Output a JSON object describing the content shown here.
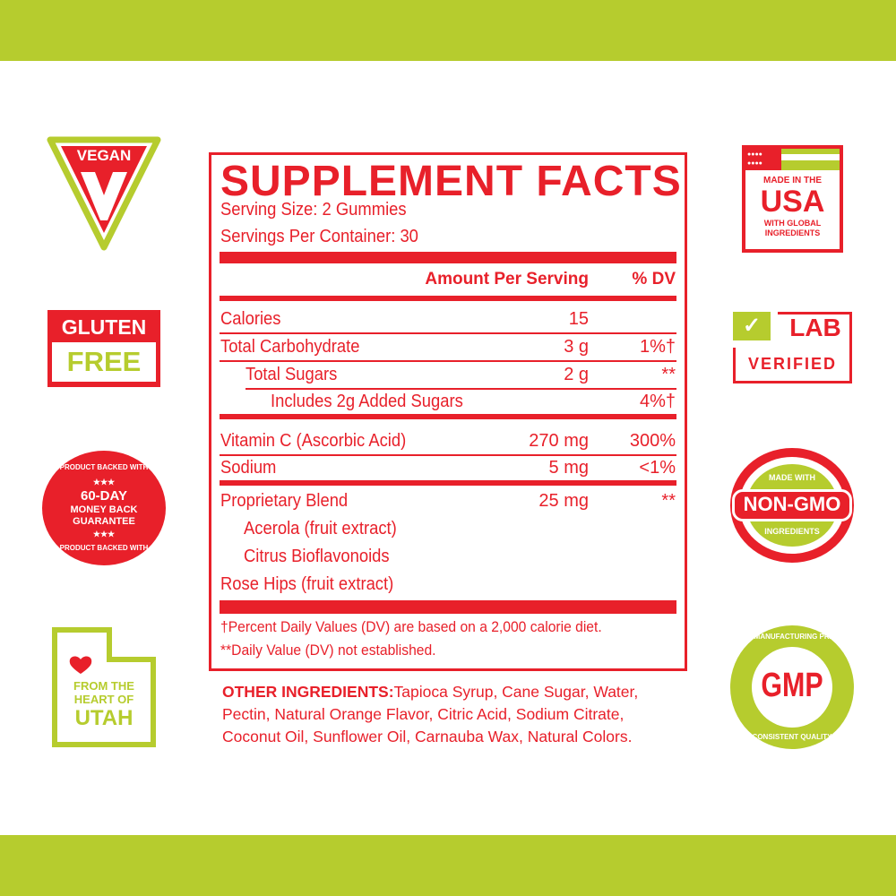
{
  "colors": {
    "red": "#e8202a",
    "green": "#b6cc2e"
  },
  "badges_left": {
    "vegan": "VEGAN",
    "gluten_free": {
      "line1": "GLUTEN",
      "line2": "FREE"
    },
    "guarantee": {
      "ring": "PRODUCT BACKED WITH",
      "line1": "60-DAY",
      "line2": "MONEY BACK",
      "line3": "GUARANTEE",
      "stars": "★★★"
    },
    "utah": {
      "line1": "FROM THE",
      "line2": "HEART OF",
      "line3": "UTAH"
    }
  },
  "badges_right": {
    "usa": {
      "line1": "MADE IN THE",
      "line2": "USA",
      "line3": "WITH GLOBAL",
      "line4": "INGREDIENTS"
    },
    "lab": {
      "line1": "LAB",
      "line2": "VERIFIED"
    },
    "non_gmo": {
      "top": "MADE WITH",
      "main": "NON-GMO",
      "bottom": "INGREDIENTS"
    },
    "gmp": {
      "top": "GOOD MANUFACTURING PRACTICE",
      "main": "GMP",
      "bottom": "CONSISTENT QUALITY"
    }
  },
  "facts": {
    "title": "SUPPLEMENT FACTS",
    "serving_size": "Serving Size: 2 Gummies",
    "servings_per_container": "Servings Per Container: 30",
    "header_amount": "Amount Per Serving",
    "header_dv": "% DV",
    "rows": [
      {
        "name": "Calories",
        "amount": "15",
        "dv": ""
      },
      {
        "name": "Total Carbohydrate",
        "amount": "3 g",
        "dv": "1%†"
      },
      {
        "name": "Total Sugars",
        "amount": "2 g",
        "dv": "**"
      },
      {
        "name": "Includes 2g Added Sugars",
        "amount": "",
        "dv": "4%†"
      },
      {
        "name": "Vitamin C (Ascorbic Acid)",
        "amount": "270 mg",
        "dv": "300%"
      },
      {
        "name": "Sodium",
        "amount": "5 mg",
        "dv": "<1%"
      },
      {
        "name": "Proprietary Blend",
        "amount": "25 mg",
        "dv": "**"
      },
      {
        "name": "Acerola (fruit extract)",
        "amount": "",
        "dv": ""
      },
      {
        "name": "Citrus Bioflavonoids",
        "amount": "",
        "dv": ""
      },
      {
        "name": "Rose Hips (fruit extract)",
        "amount": "",
        "dv": ""
      }
    ],
    "footnote1": "†Percent Daily Values (DV) are based on a 2,000 calorie diet.",
    "footnote2": "**Daily Value (DV) not established."
  },
  "other_ingredients": {
    "label": "OTHER INGREDIENTS:",
    "line1": "Tapioca Syrup, Cane Sugar, Water,",
    "line2": "Pectin, Natural Orange Flavor, Citric Acid, Sodium Citrate,",
    "line3": "Coconut Oil, Sunflower Oil, Carnauba Wax, Natural Colors."
  }
}
